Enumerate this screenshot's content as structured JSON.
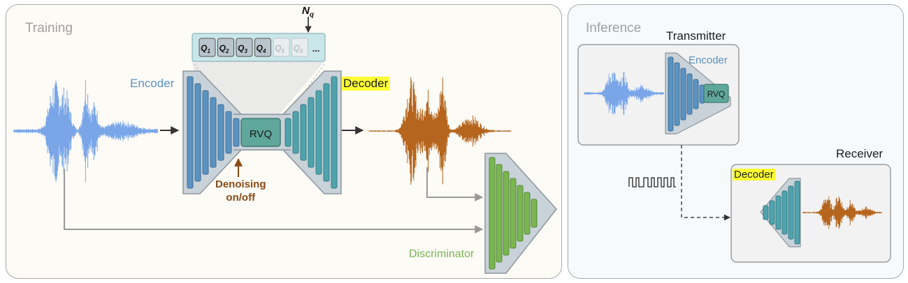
{
  "training": {
    "title": "Training",
    "encoder_label": "Encoder",
    "decoder_label": "Decoder",
    "rvq_label": "RVQ",
    "nq_label": "N",
    "nq_sub": "q",
    "quantizers": [
      {
        "base": "Q",
        "sub": "1"
      },
      {
        "base": "Q",
        "sub": "2"
      },
      {
        "base": "Q",
        "sub": "3"
      },
      {
        "base": "Q",
        "sub": "4"
      },
      {
        "base": "Q",
        "sub": "5"
      },
      {
        "base": "Q",
        "sub": "6"
      }
    ],
    "ellipsis": "...",
    "denoising_line1": "Denoising",
    "denoising_line2": "on/off",
    "discriminator_label": "Discriminator"
  },
  "inference": {
    "title": "Inference",
    "transmitter_label": "Transmitter",
    "encoder_label": "Encoder",
    "rvq_label": "RVQ",
    "receiver_label": "Receiver",
    "decoder_label": "Decoder"
  },
  "colors": {
    "encoder_blue": "#5b92c0",
    "decoder_teal": "#4fa3ad",
    "rvq_teal": "#5fa79b",
    "discriminator_green": "#7ab551",
    "input_wave": "#7aa6e8",
    "output_wave": "#b5651d",
    "highlight_yellow": "#ffff33",
    "denoise_brown": "#8b4a14"
  }
}
